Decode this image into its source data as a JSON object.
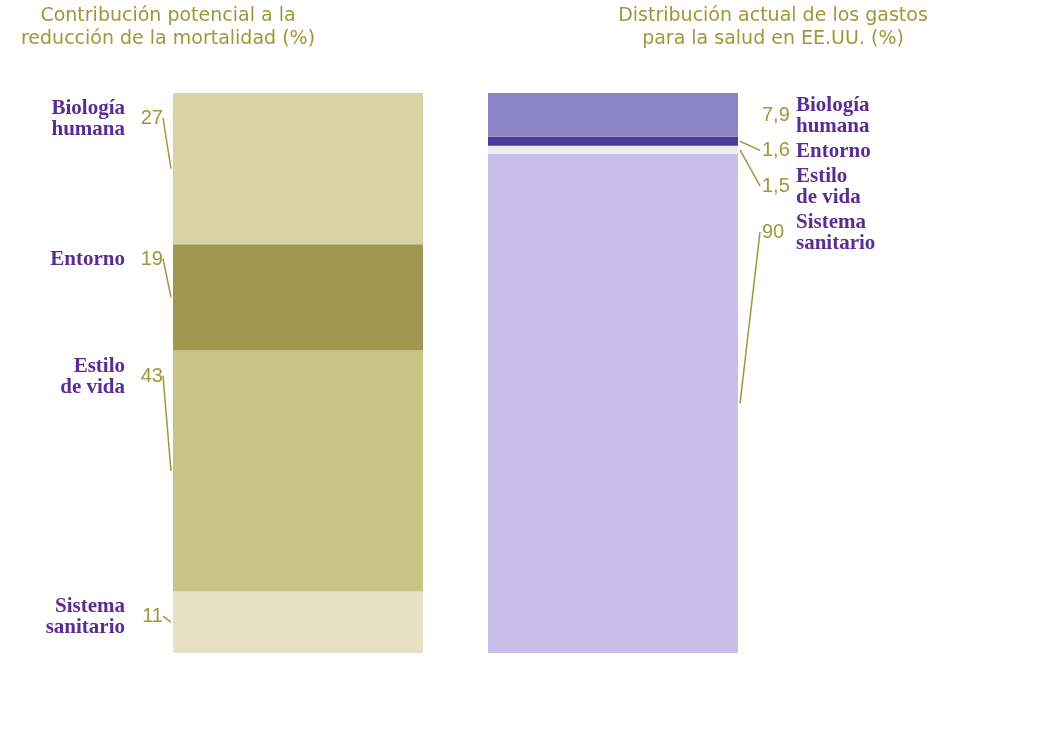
{
  "chart_data": [
    {
      "type": "bar",
      "title": "Contribución potencial a la reducción de la mortalidad (%)",
      "categories": [
        null
      ],
      "stacked": true,
      "tick_labels": false,
      "series": [
        {
          "name": "Sistema sanitario",
          "color": "#e6e0c6",
          "values": [
            11
          ],
          "value_labels": [
            "11"
          ]
        },
        {
          "name": "Estilo de vida",
          "color": "#c9c388",
          "values": [
            43
          ],
          "value_labels": [
            "43"
          ]
        },
        {
          "name": "Entorno",
          "color": "#a09850",
          "values": [
            19
          ],
          "value_labels": [
            "19"
          ]
        },
        {
          "name": "Biología humana",
          "color": "#d8d3a2",
          "values": [
            27
          ],
          "value_labels": [
            "27"
          ]
        }
      ]
    },
    {
      "type": "bar",
      "title": "Distribución actual de los gastos para la salud en EE.UU. (%)",
      "categories": [
        null
      ],
      "stacked": true,
      "tick_labels": false,
      "series": [
        {
          "name": "Sistema sanitario",
          "color": "#c8c0e8",
          "values": [
            90
          ],
          "value_labels": [
            "90"
          ]
        },
        {
          "name": "Estilo de vida",
          "color": "#ecebf6",
          "values": [
            1.5
          ],
          "value_labels": [
            "1,5"
          ]
        },
        {
          "name": "Entorno",
          "color": "#4a3a98",
          "values": [
            1.6
          ],
          "value_labels": [
            "1,6"
          ]
        },
        {
          "name": "Biología humana",
          "color": "#8c84c4",
          "values": [
            7.9
          ],
          "value_labels": [
            "7,9"
          ]
        }
      ]
    }
  ]
}
